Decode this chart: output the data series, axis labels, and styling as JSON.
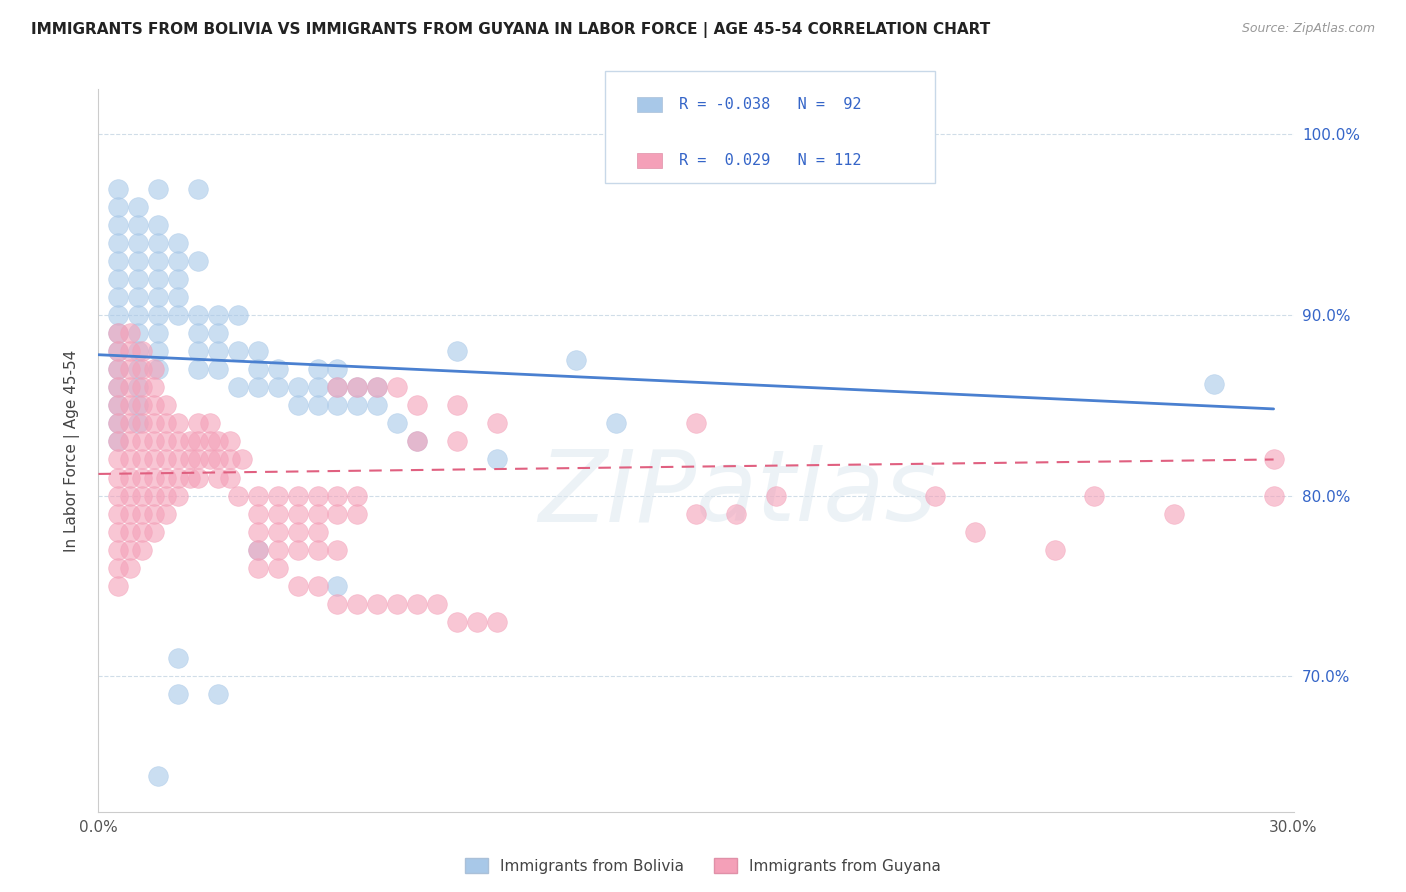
{
  "title": "IMMIGRANTS FROM BOLIVIA VS IMMIGRANTS FROM GUYANA IN LABOR FORCE | AGE 45-54 CORRELATION CHART",
  "source": "Source: ZipAtlas.com",
  "ylabel": "In Labor Force | Age 45-54",
  "xlim": [
    0.0,
    0.3
  ],
  "ylim": [
    0.625,
    1.025
  ],
  "ytick_labels": [
    "70.0%",
    "80.0%",
    "90.0%",
    "100.0%"
  ],
  "ytick_values": [
    0.7,
    0.8,
    0.9,
    1.0
  ],
  "xtick_labels": [
    "0.0%",
    "30.0%"
  ],
  "xtick_values": [
    0.0,
    0.3
  ],
  "bolivia_color": "#a8c8e8",
  "guyana_color": "#f4a0b8",
  "bolivia_line_color": "#4a80d0",
  "guyana_line_color": "#e06080",
  "R_bolivia": -0.038,
  "N_bolivia": 92,
  "R_guyana": 0.029,
  "N_guyana": 112,
  "legend_text_color": "#3565c8",
  "background_color": "#ffffff",
  "grid_color": "#d0dde8",
  "bolivia_line_x": [
    0.0,
    0.295
  ],
  "bolivia_line_y": [
    0.878,
    0.848
  ],
  "guyana_line_x": [
    0.0,
    0.295
  ],
  "guyana_line_y": [
    0.812,
    0.82
  ],
  "bolivia_scatter": [
    [
      0.005,
      0.97
    ],
    [
      0.015,
      0.97
    ],
    [
      0.025,
      0.97
    ],
    [
      0.005,
      0.96
    ],
    [
      0.01,
      0.96
    ],
    [
      0.005,
      0.95
    ],
    [
      0.01,
      0.95
    ],
    [
      0.015,
      0.95
    ],
    [
      0.005,
      0.94
    ],
    [
      0.01,
      0.94
    ],
    [
      0.015,
      0.94
    ],
    [
      0.02,
      0.94
    ],
    [
      0.005,
      0.93
    ],
    [
      0.01,
      0.93
    ],
    [
      0.015,
      0.93
    ],
    [
      0.02,
      0.93
    ],
    [
      0.025,
      0.93
    ],
    [
      0.005,
      0.92
    ],
    [
      0.01,
      0.92
    ],
    [
      0.015,
      0.92
    ],
    [
      0.02,
      0.92
    ],
    [
      0.005,
      0.91
    ],
    [
      0.01,
      0.91
    ],
    [
      0.015,
      0.91
    ],
    [
      0.02,
      0.91
    ],
    [
      0.005,
      0.9
    ],
    [
      0.01,
      0.9
    ],
    [
      0.015,
      0.9
    ],
    [
      0.02,
      0.9
    ],
    [
      0.005,
      0.89
    ],
    [
      0.01,
      0.89
    ],
    [
      0.015,
      0.89
    ],
    [
      0.005,
      0.88
    ],
    [
      0.01,
      0.88
    ],
    [
      0.015,
      0.88
    ],
    [
      0.005,
      0.87
    ],
    [
      0.01,
      0.87
    ],
    [
      0.015,
      0.87
    ],
    [
      0.005,
      0.86
    ],
    [
      0.01,
      0.86
    ],
    [
      0.005,
      0.85
    ],
    [
      0.01,
      0.85
    ],
    [
      0.005,
      0.84
    ],
    [
      0.01,
      0.84
    ],
    [
      0.005,
      0.83
    ],
    [
      0.025,
      0.9
    ],
    [
      0.03,
      0.9
    ],
    [
      0.035,
      0.9
    ],
    [
      0.025,
      0.89
    ],
    [
      0.03,
      0.89
    ],
    [
      0.025,
      0.88
    ],
    [
      0.03,
      0.88
    ],
    [
      0.035,
      0.88
    ],
    [
      0.04,
      0.88
    ],
    [
      0.025,
      0.87
    ],
    [
      0.03,
      0.87
    ],
    [
      0.04,
      0.87
    ],
    [
      0.045,
      0.87
    ],
    [
      0.035,
      0.86
    ],
    [
      0.04,
      0.86
    ],
    [
      0.045,
      0.86
    ],
    [
      0.055,
      0.87
    ],
    [
      0.06,
      0.87
    ],
    [
      0.05,
      0.86
    ],
    [
      0.055,
      0.86
    ],
    [
      0.06,
      0.86
    ],
    [
      0.065,
      0.86
    ],
    [
      0.07,
      0.86
    ],
    [
      0.05,
      0.85
    ],
    [
      0.055,
      0.85
    ],
    [
      0.06,
      0.85
    ],
    [
      0.065,
      0.85
    ],
    [
      0.07,
      0.85
    ],
    [
      0.075,
      0.84
    ],
    [
      0.28,
      0.862
    ],
    [
      0.12,
      0.875
    ],
    [
      0.09,
      0.88
    ],
    [
      0.13,
      0.84
    ],
    [
      0.08,
      0.83
    ],
    [
      0.1,
      0.82
    ],
    [
      0.04,
      0.77
    ],
    [
      0.06,
      0.75
    ],
    [
      0.02,
      0.71
    ],
    [
      0.02,
      0.69
    ],
    [
      0.03,
      0.69
    ],
    [
      0.015,
      0.645
    ]
  ],
  "guyana_scatter": [
    [
      0.005,
      0.89
    ],
    [
      0.008,
      0.89
    ],
    [
      0.005,
      0.88
    ],
    [
      0.008,
      0.88
    ],
    [
      0.011,
      0.88
    ],
    [
      0.005,
      0.87
    ],
    [
      0.008,
      0.87
    ],
    [
      0.011,
      0.87
    ],
    [
      0.014,
      0.87
    ],
    [
      0.005,
      0.86
    ],
    [
      0.008,
      0.86
    ],
    [
      0.011,
      0.86
    ],
    [
      0.014,
      0.86
    ],
    [
      0.005,
      0.85
    ],
    [
      0.008,
      0.85
    ],
    [
      0.011,
      0.85
    ],
    [
      0.014,
      0.85
    ],
    [
      0.017,
      0.85
    ],
    [
      0.005,
      0.84
    ],
    [
      0.008,
      0.84
    ],
    [
      0.011,
      0.84
    ],
    [
      0.014,
      0.84
    ],
    [
      0.017,
      0.84
    ],
    [
      0.02,
      0.84
    ],
    [
      0.005,
      0.83
    ],
    [
      0.008,
      0.83
    ],
    [
      0.011,
      0.83
    ],
    [
      0.014,
      0.83
    ],
    [
      0.017,
      0.83
    ],
    [
      0.02,
      0.83
    ],
    [
      0.023,
      0.83
    ],
    [
      0.005,
      0.82
    ],
    [
      0.008,
      0.82
    ],
    [
      0.011,
      0.82
    ],
    [
      0.014,
      0.82
    ],
    [
      0.017,
      0.82
    ],
    [
      0.02,
      0.82
    ],
    [
      0.023,
      0.82
    ],
    [
      0.005,
      0.81
    ],
    [
      0.008,
      0.81
    ],
    [
      0.011,
      0.81
    ],
    [
      0.014,
      0.81
    ],
    [
      0.017,
      0.81
    ],
    [
      0.02,
      0.81
    ],
    [
      0.023,
      0.81
    ],
    [
      0.005,
      0.8
    ],
    [
      0.008,
      0.8
    ],
    [
      0.011,
      0.8
    ],
    [
      0.014,
      0.8
    ],
    [
      0.017,
      0.8
    ],
    [
      0.02,
      0.8
    ],
    [
      0.005,
      0.79
    ],
    [
      0.008,
      0.79
    ],
    [
      0.011,
      0.79
    ],
    [
      0.014,
      0.79
    ],
    [
      0.017,
      0.79
    ],
    [
      0.005,
      0.78
    ],
    [
      0.008,
      0.78
    ],
    [
      0.011,
      0.78
    ],
    [
      0.014,
      0.78
    ],
    [
      0.005,
      0.77
    ],
    [
      0.008,
      0.77
    ],
    [
      0.011,
      0.77
    ],
    [
      0.005,
      0.76
    ],
    [
      0.008,
      0.76
    ],
    [
      0.005,
      0.75
    ],
    [
      0.025,
      0.84
    ],
    [
      0.028,
      0.84
    ],
    [
      0.025,
      0.83
    ],
    [
      0.028,
      0.83
    ],
    [
      0.025,
      0.82
    ],
    [
      0.028,
      0.82
    ],
    [
      0.025,
      0.81
    ],
    [
      0.03,
      0.83
    ],
    [
      0.033,
      0.83
    ],
    [
      0.03,
      0.82
    ],
    [
      0.033,
      0.82
    ],
    [
      0.036,
      0.82
    ],
    [
      0.03,
      0.81
    ],
    [
      0.033,
      0.81
    ],
    [
      0.035,
      0.8
    ],
    [
      0.04,
      0.8
    ],
    [
      0.045,
      0.8
    ],
    [
      0.05,
      0.8
    ],
    [
      0.055,
      0.8
    ],
    [
      0.06,
      0.8
    ],
    [
      0.065,
      0.8
    ],
    [
      0.04,
      0.79
    ],
    [
      0.045,
      0.79
    ],
    [
      0.05,
      0.79
    ],
    [
      0.055,
      0.79
    ],
    [
      0.04,
      0.78
    ],
    [
      0.045,
      0.78
    ],
    [
      0.05,
      0.78
    ],
    [
      0.055,
      0.78
    ],
    [
      0.06,
      0.79
    ],
    [
      0.065,
      0.79
    ],
    [
      0.04,
      0.77
    ],
    [
      0.045,
      0.77
    ],
    [
      0.05,
      0.77
    ],
    [
      0.055,
      0.77
    ],
    [
      0.06,
      0.77
    ],
    [
      0.04,
      0.76
    ],
    [
      0.045,
      0.76
    ],
    [
      0.05,
      0.75
    ],
    [
      0.055,
      0.75
    ],
    [
      0.06,
      0.74
    ],
    [
      0.065,
      0.74
    ],
    [
      0.07,
      0.74
    ],
    [
      0.075,
      0.74
    ],
    [
      0.08,
      0.74
    ],
    [
      0.085,
      0.74
    ],
    [
      0.09,
      0.73
    ],
    [
      0.095,
      0.73
    ],
    [
      0.1,
      0.73
    ],
    [
      0.06,
      0.86
    ],
    [
      0.065,
      0.86
    ],
    [
      0.07,
      0.86
    ],
    [
      0.075,
      0.86
    ],
    [
      0.08,
      0.85
    ],
    [
      0.09,
      0.85
    ],
    [
      0.1,
      0.84
    ],
    [
      0.08,
      0.83
    ],
    [
      0.09,
      0.83
    ],
    [
      0.15,
      0.84
    ],
    [
      0.15,
      0.79
    ],
    [
      0.16,
      0.79
    ],
    [
      0.17,
      0.8
    ],
    [
      0.21,
      0.8
    ],
    [
      0.25,
      0.8
    ],
    [
      0.22,
      0.78
    ],
    [
      0.24,
      0.77
    ],
    [
      0.27,
      0.79
    ],
    [
      0.295,
      0.82
    ],
    [
      0.295,
      0.8
    ]
  ]
}
